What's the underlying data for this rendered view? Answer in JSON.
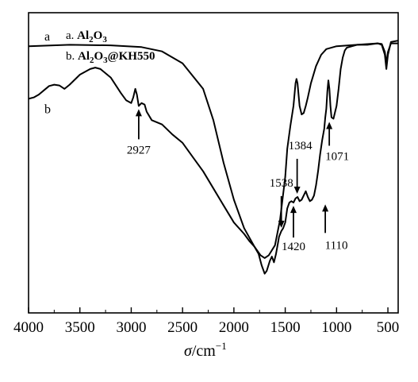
{
  "chart_data": {
    "type": "line",
    "x_axis": {
      "min": 4000,
      "max": 400,
      "reversed": true,
      "ticks": [
        4000,
        3500,
        3000,
        2500,
        2000,
        1500,
        1000,
        500
      ],
      "tick_labels": [
        "4000",
        "3500",
        "3000",
        "2500",
        "2000",
        "1500",
        "1000",
        "500"
      ]
    },
    "xlabel": {
      "symbol": "σ",
      "unit": "/cm",
      "exponent": "−1"
    },
    "y_axis": {
      "ticks_shown": false,
      "relative_transmittance_range": [
        0,
        100
      ]
    },
    "grid": false,
    "legend": {
      "placement": "top-left",
      "entries": [
        {
          "prefix": "a. ",
          "parts": [
            "Al",
            "2",
            "O",
            "3"
          ],
          "subscripts": [
            false,
            true,
            false,
            true
          ]
        },
        {
          "prefix": "b. ",
          "parts": [
            "Al",
            "2",
            "O",
            "3",
            "@KH550"
          ],
          "subscripts": [
            false,
            true,
            false,
            true,
            false
          ]
        }
      ]
    },
    "series": [
      {
        "name": "a",
        "label": "a",
        "points": [
          [
            4000,
            91.0
          ],
          [
            3600,
            91.5
          ],
          [
            3200,
            91.3
          ],
          [
            2900,
            90.7
          ],
          [
            2700,
            89.2
          ],
          [
            2500,
            85.0
          ],
          [
            2300,
            76.0
          ],
          [
            2200,
            65.0
          ],
          [
            2100,
            50.0
          ],
          [
            2000,
            37.0
          ],
          [
            1900,
            27.0
          ],
          [
            1800,
            20.5
          ],
          [
            1740,
            17.5
          ],
          [
            1700,
            16.5
          ],
          [
            1660,
            17.5
          ],
          [
            1600,
            21.0
          ],
          [
            1550,
            30.0
          ],
          [
            1500,
            45.0
          ],
          [
            1480,
            55.0
          ],
          [
            1450,
            63.0
          ],
          [
            1420,
            70.0
          ],
          [
            1400,
            78.0
          ],
          [
            1390,
            79.5
          ],
          [
            1380,
            78.0
          ],
          [
            1360,
            70.0
          ],
          [
            1340,
            67.0
          ],
          [
            1320,
            67.5
          ],
          [
            1300,
            70.0
          ],
          [
            1280,
            73.0
          ],
          [
            1250,
            78.0
          ],
          [
            1200,
            84.0
          ],
          [
            1150,
            88.0
          ],
          [
            1100,
            90.0
          ],
          [
            1000,
            91.0
          ],
          [
            800,
            91.5
          ],
          [
            600,
            92.0
          ],
          [
            560,
            91.8
          ],
          [
            530,
            89.0
          ],
          [
            515,
            85.0
          ],
          [
            500,
            89.0
          ],
          [
            470,
            92.0
          ],
          [
            400,
            92.0
          ]
        ]
      },
      {
        "name": "b",
        "label": "b",
        "points": [
          [
            4000,
            72.5
          ],
          [
            3950,
            73.0
          ],
          [
            3900,
            74.0
          ],
          [
            3850,
            75.5
          ],
          [
            3800,
            77.0
          ],
          [
            3750,
            77.5
          ],
          [
            3700,
            77.2
          ],
          [
            3650,
            76.0
          ],
          [
            3600,
            77.5
          ],
          [
            3500,
            81.0
          ],
          [
            3400,
            83.0
          ],
          [
            3350,
            83.5
          ],
          [
            3300,
            83.0
          ],
          [
            3200,
            80.0
          ],
          [
            3100,
            74.5
          ],
          [
            3050,
            72.0
          ],
          [
            3000,
            71.0
          ],
          [
            2980,
            73.0
          ],
          [
            2960,
            76.0
          ],
          [
            2945,
            74.0
          ],
          [
            2927,
            70.0
          ],
          [
            2900,
            71.0
          ],
          [
            2870,
            70.5
          ],
          [
            2850,
            68.0
          ],
          [
            2800,
            65.0
          ],
          [
            2700,
            63.5
          ],
          [
            2600,
            60.0
          ],
          [
            2500,
            57.0
          ],
          [
            2400,
            52.0
          ],
          [
            2300,
            47.0
          ],
          [
            2200,
            41.0
          ],
          [
            2100,
            35.0
          ],
          [
            2000,
            29.0
          ],
          [
            1900,
            25.0
          ],
          [
            1850,
            22.5
          ],
          [
            1800,
            20.5
          ],
          [
            1760,
            18.0
          ],
          [
            1730,
            14.0
          ],
          [
            1700,
            11.0
          ],
          [
            1680,
            12.0
          ],
          [
            1650,
            15.5
          ],
          [
            1630,
            17.0
          ],
          [
            1610,
            15.0
          ],
          [
            1590,
            18.0
          ],
          [
            1570,
            22.0
          ],
          [
            1560,
            24.0
          ],
          [
            1538,
            26.0
          ],
          [
            1520,
            27.0
          ],
          [
            1500,
            29.0
          ],
          [
            1480,
            34.0
          ],
          [
            1460,
            36.0
          ],
          [
            1440,
            36.5
          ],
          [
            1420,
            36.0
          ],
          [
            1400,
            37.5
          ],
          [
            1380,
            38.0
          ],
          [
            1360,
            36.5
          ],
          [
            1340,
            37.0
          ],
          [
            1320,
            38.5
          ],
          [
            1300,
            40.0
          ],
          [
            1280,
            38.0
          ],
          [
            1260,
            36.5
          ],
          [
            1240,
            37.0
          ],
          [
            1220,
            38.5
          ],
          [
            1200,
            42.0
          ],
          [
            1180,
            47.0
          ],
          [
            1160,
            53.0
          ],
          [
            1140,
            58.0
          ],
          [
            1120,
            62.0
          ],
          [
            1110,
            66.0
          ],
          [
            1100,
            69.0
          ],
          [
            1090,
            75.0
          ],
          [
            1080,
            79.0
          ],
          [
            1070,
            76.0
          ],
          [
            1060,
            70.0
          ],
          [
            1050,
            66.0
          ],
          [
            1030,
            65.5
          ],
          [
            1000,
            70.0
          ],
          [
            980,
            76.0
          ],
          [
            960,
            83.0
          ],
          [
            940,
            87.0
          ],
          [
            920,
            89.5
          ],
          [
            900,
            90.5
          ],
          [
            850,
            91.0
          ],
          [
            800,
            91.5
          ],
          [
            700,
            91.5
          ],
          [
            600,
            92.0
          ],
          [
            560,
            91.5
          ],
          [
            530,
            88.0
          ],
          [
            515,
            83.0
          ],
          [
            500,
            88.0
          ],
          [
            470,
            92.5
          ],
          [
            400,
            93.0
          ]
        ]
      }
    ],
    "annotations": [
      {
        "label": "2927",
        "x": 2927,
        "y": 70.0
      },
      {
        "label": "1538",
        "x": 1538,
        "y": 26.0
      },
      {
        "label": "1420",
        "x": 1420,
        "y": 36.0
      },
      {
        "label": "1384",
        "x": 1384,
        "y": 38.0
      },
      {
        "label": "1110",
        "x": 1110,
        "y": 36.5
      },
      {
        "label": "1071",
        "x": 1071,
        "y": 65.5
      }
    ]
  }
}
